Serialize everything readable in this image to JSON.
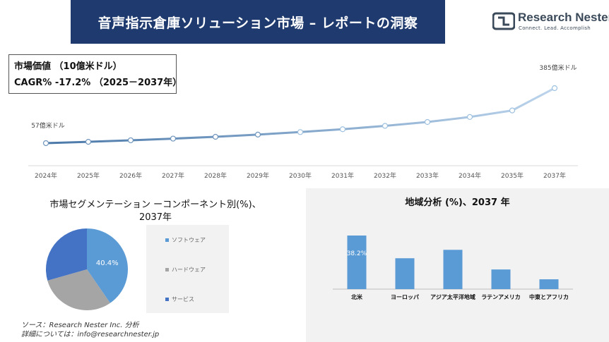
{
  "header": {
    "title": "音声指示倉庫ソリューション市場 – レポートの洞察"
  },
  "logo": {
    "name": "Research Nester",
    "tagline": "Connect. Lead. Accomplish"
  },
  "info": {
    "market_value": "市場価値 （10億米ドル）",
    "cagr": "CAGR% -17.2% （2025－2037年）"
  },
  "pie_section": {
    "title_line1": "市場セグメンテーション ーコンポーネント別(%)、",
    "title_line2": "2037年"
  },
  "bar_section": {
    "title": "地域分析 (%)、2037 年"
  },
  "source": {
    "line1": "ソース：Research Nester Inc. 分析",
    "line2": "詳細については：info@researchnester.jp"
  },
  "colors": {
    "banner": "#1f3a6e",
    "bar": "#5b9bd5",
    "line_start": "#4a78a8",
    "line_end": "#bcd4ec"
  },
  "chart_data": [
    {
      "type": "line",
      "x": [
        "2024年",
        "2025年",
        "2026年",
        "2027年",
        "2028年",
        "2029年",
        "2030年",
        "2031年",
        "2032年",
        "2033年",
        "2034年",
        "2035年",
        "2037年"
      ],
      "values": [
        57,
        65,
        74,
        84,
        95,
        108,
        123,
        140,
        160,
        183,
        213,
        252,
        385
      ],
      "annotations": {
        "first": "57億米ドル",
        "last": "385億米ドル"
      }
    },
    {
      "type": "pie",
      "labels": [
        "ソフトウェア",
        "ハードウェア",
        "サービス"
      ],
      "values": [
        40.4,
        30.2,
        29.4
      ],
      "colors": [
        "#5b9bd5",
        "#a5a5a5",
        "#4472c4"
      ],
      "data_labels": [
        "40.4%",
        "",
        ""
      ]
    },
    {
      "type": "bar",
      "categories": [
        "北米",
        "ヨーロッパ",
        "アジア太平洋地域",
        "ラテンアメリカ",
        "中東とアフリカ"
      ],
      "values": [
        38.2,
        22,
        28,
        14,
        7
      ],
      "data_labels": [
        "38.2%",
        "",
        "",
        "",
        ""
      ]
    }
  ]
}
